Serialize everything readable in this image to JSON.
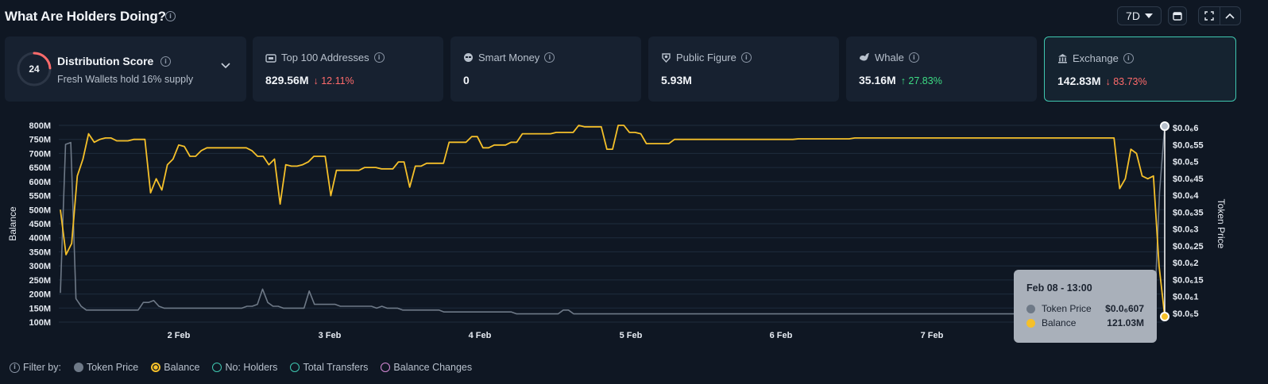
{
  "header": {
    "title": "What Are Holders Doing?",
    "range_label": "7D"
  },
  "distribution": {
    "score": "24",
    "score_fraction": 0.24,
    "title": "Distribution Score",
    "subtitle": "Fresh Wallets hold 16% supply"
  },
  "cards": [
    {
      "label": "Top 100 Addresses",
      "value": "829.56M",
      "change": "↓ 12.11%",
      "direction": "down",
      "icon": "wallet-icon"
    },
    {
      "label": "Smart Money",
      "value": "0",
      "change": "",
      "direction": "",
      "icon": "smart-money-icon"
    },
    {
      "label": "Public Figure",
      "value": "5.93M",
      "change": "",
      "direction": "",
      "icon": "public-figure-icon"
    },
    {
      "label": "Whale",
      "value": "35.16M",
      "change": "↑ 27.83%",
      "direction": "up",
      "icon": "whale-icon"
    },
    {
      "label": "Exchange",
      "value": "142.83M",
      "change": "↓ 83.73%",
      "direction": "down",
      "icon": "bank-icon"
    }
  ],
  "tooltip": {
    "title": "Feb 08 - 13:00",
    "rows": [
      {
        "label": "Token Price",
        "value": "$0.0₆607"
      },
      {
        "label": "Balance",
        "value": "121.03M"
      }
    ]
  },
  "filters": {
    "label": "Filter by:",
    "items": [
      "Token Price",
      "Balance",
      "No: Holders",
      "Total Transfers",
      "Balance Changes"
    ]
  },
  "colors": {
    "balance": "#f5c02a",
    "token_price": "#6e7987",
    "holders": "#3fc7b0",
    "transfers": "#3fc7b0",
    "balance_changes": "#d58ad6",
    "down": "#ff6b6b",
    "up": "#3ddc84"
  },
  "chart_data": {
    "type": "line",
    "x_ticks": [
      "2 Feb",
      "3 Feb",
      "4 Feb",
      "5 Feb",
      "6 Feb",
      "7 Feb"
    ],
    "y_left": {
      "label": "Balance",
      "ticks": [
        "100M",
        "150M",
        "200M",
        "250M",
        "300M",
        "350M",
        "400M",
        "450M",
        "500M",
        "550M",
        "600M",
        "650M",
        "700M",
        "750M",
        "800M"
      ],
      "range": [
        100,
        800
      ]
    },
    "y_right": {
      "label": "Token Price",
      "ticks": [
        "$0.0₅5",
        "$0.0₆1",
        "$0.0₆15",
        "$0.0₆2",
        "$0.0₆25",
        "$0.0₆3",
        "$0.0₆35",
        "$0.0₆4",
        "$0.0₆45",
        "$0.0₆5",
        "$0.0₆55",
        "$0.0₆6"
      ]
    },
    "series": [
      {
        "name": "Balance",
        "unit": "M",
        "values": [
          500,
          340,
          380,
          620,
          680,
          770,
          740,
          750,
          755,
          755,
          745,
          745,
          745,
          750,
          750,
          750,
          560,
          610,
          570,
          660,
          680,
          730,
          725,
          690,
          690,
          710,
          720,
          720,
          720,
          720,
          720,
          720,
          720,
          720,
          710,
          690,
          690,
          660,
          680,
          520,
          660,
          655,
          655,
          660,
          670,
          690,
          690,
          690,
          550,
          640,
          640,
          640,
          640,
          640,
          650,
          650,
          650,
          645,
          645,
          645,
          670,
          670,
          580,
          655,
          655,
          665,
          665,
          665,
          665,
          740,
          740,
          740,
          740,
          760,
          760,
          720,
          720,
          730,
          730,
          730,
          740,
          740,
          770,
          770,
          770,
          770,
          770,
          770,
          775,
          775,
          775,
          775,
          800,
          795,
          795,
          795,
          795,
          715,
          715,
          800,
          800,
          775,
          775,
          770,
          735,
          735,
          735,
          735,
          735,
          750,
          750,
          750,
          750,
          750,
          750,
          750,
          750,
          750,
          750,
          750,
          750,
          750,
          750,
          750,
          750,
          750,
          750,
          750,
          750,
          750,
          750,
          752,
          752,
          752,
          752,
          752,
          752,
          752,
          752,
          752,
          752,
          755,
          755,
          755,
          755,
          755,
          755,
          755,
          755,
          755,
          755,
          755,
          755,
          755,
          755,
          755,
          755,
          755,
          755,
          755,
          755,
          755,
          755,
          755,
          755,
          755,
          755,
          755,
          755,
          755,
          755,
          755,
          755,
          755,
          755,
          755,
          755,
          755,
          755,
          755,
          755,
          755,
          755,
          755,
          755,
          755,
          755,
          755,
          575,
          610,
          715,
          700,
          620,
          610,
          620,
          300,
          121
        ]
      },
      {
        "name": "Token Price",
        "unit": "relative",
        "values": [
          0.12,
          0.9,
          0.91,
          0.09,
          0.05,
          0.03,
          0.03,
          0.03,
          0.03,
          0.03,
          0.03,
          0.03,
          0.03,
          0.03,
          0.03,
          0.03,
          0.07,
          0.07,
          0.08,
          0.05,
          0.04,
          0.04,
          0.04,
          0.04,
          0.04,
          0.04,
          0.04,
          0.04,
          0.04,
          0.04,
          0.04,
          0.04,
          0.04,
          0.04,
          0.04,
          0.04,
          0.05,
          0.05,
          0.06,
          0.14,
          0.07,
          0.05,
          0.05,
          0.04,
          0.04,
          0.04,
          0.04,
          0.04,
          0.13,
          0.06,
          0.06,
          0.06,
          0.06,
          0.06,
          0.05,
          0.05,
          0.05,
          0.05,
          0.05,
          0.05,
          0.05,
          0.04,
          0.05,
          0.04,
          0.04,
          0.04,
          0.03,
          0.03,
          0.03,
          0.03,
          0.03,
          0.03,
          0.03,
          0.03,
          0.02,
          0.02,
          0.02,
          0.02,
          0.02,
          0.02,
          0.02,
          0.02,
          0.02,
          0.02,
          0.02,
          0.02,
          0.02,
          0.02,
          0.01,
          0.01,
          0.01,
          0.01,
          0.01,
          0.01,
          0.01,
          0.01,
          0.01,
          0.03,
          0.03,
          0.01,
          0.01,
          0.01,
          0.01,
          0.01,
          0.01,
          0.01,
          0.01,
          0.01,
          0.01,
          0.01,
          0.01,
          0.01,
          0.01,
          0.01,
          0.01,
          0.01,
          0.01,
          0.01,
          0.01,
          0.01,
          0.01,
          0.01,
          0.01,
          0.01,
          0.01,
          0.01,
          0.01,
          0.01,
          0.01,
          0.01,
          0.01,
          0.01,
          0.01,
          0.01,
          0.01,
          0.01,
          0.01,
          0.01,
          0.01,
          0.01,
          0.01,
          0.01,
          0.01,
          0.01,
          0.01,
          0.01,
          0.01,
          0.01,
          0.01,
          0.01,
          0.01,
          0.01,
          0.01,
          0.01,
          0.01,
          0.01,
          0.01,
          0.01,
          0.01,
          0.01,
          0.01,
          0.01,
          0.01,
          0.01,
          0.01,
          0.01,
          0.01,
          0.01,
          0.01,
          0.01,
          0.01,
          0.01,
          0.01,
          0.01,
          0.01,
          0.01,
          0.01,
          0.01,
          0.01,
          0.01,
          0.01,
          0.01,
          0.01,
          0.01,
          0.01,
          0.01,
          0.01,
          0.01,
          0.01,
          0.01,
          0.01,
          0.01,
          0.01,
          0.01,
          0.01,
          0.01,
          0.01,
          0.01,
          0.01,
          0.01,
          0.01,
          0.01,
          0.01,
          0.01,
          0.01,
          0.01,
          0.01,
          0.01,
          0.01,
          0.01,
          0.01,
          0.01,
          0.65,
          1.0
        ]
      }
    ],
    "grid": true
  }
}
